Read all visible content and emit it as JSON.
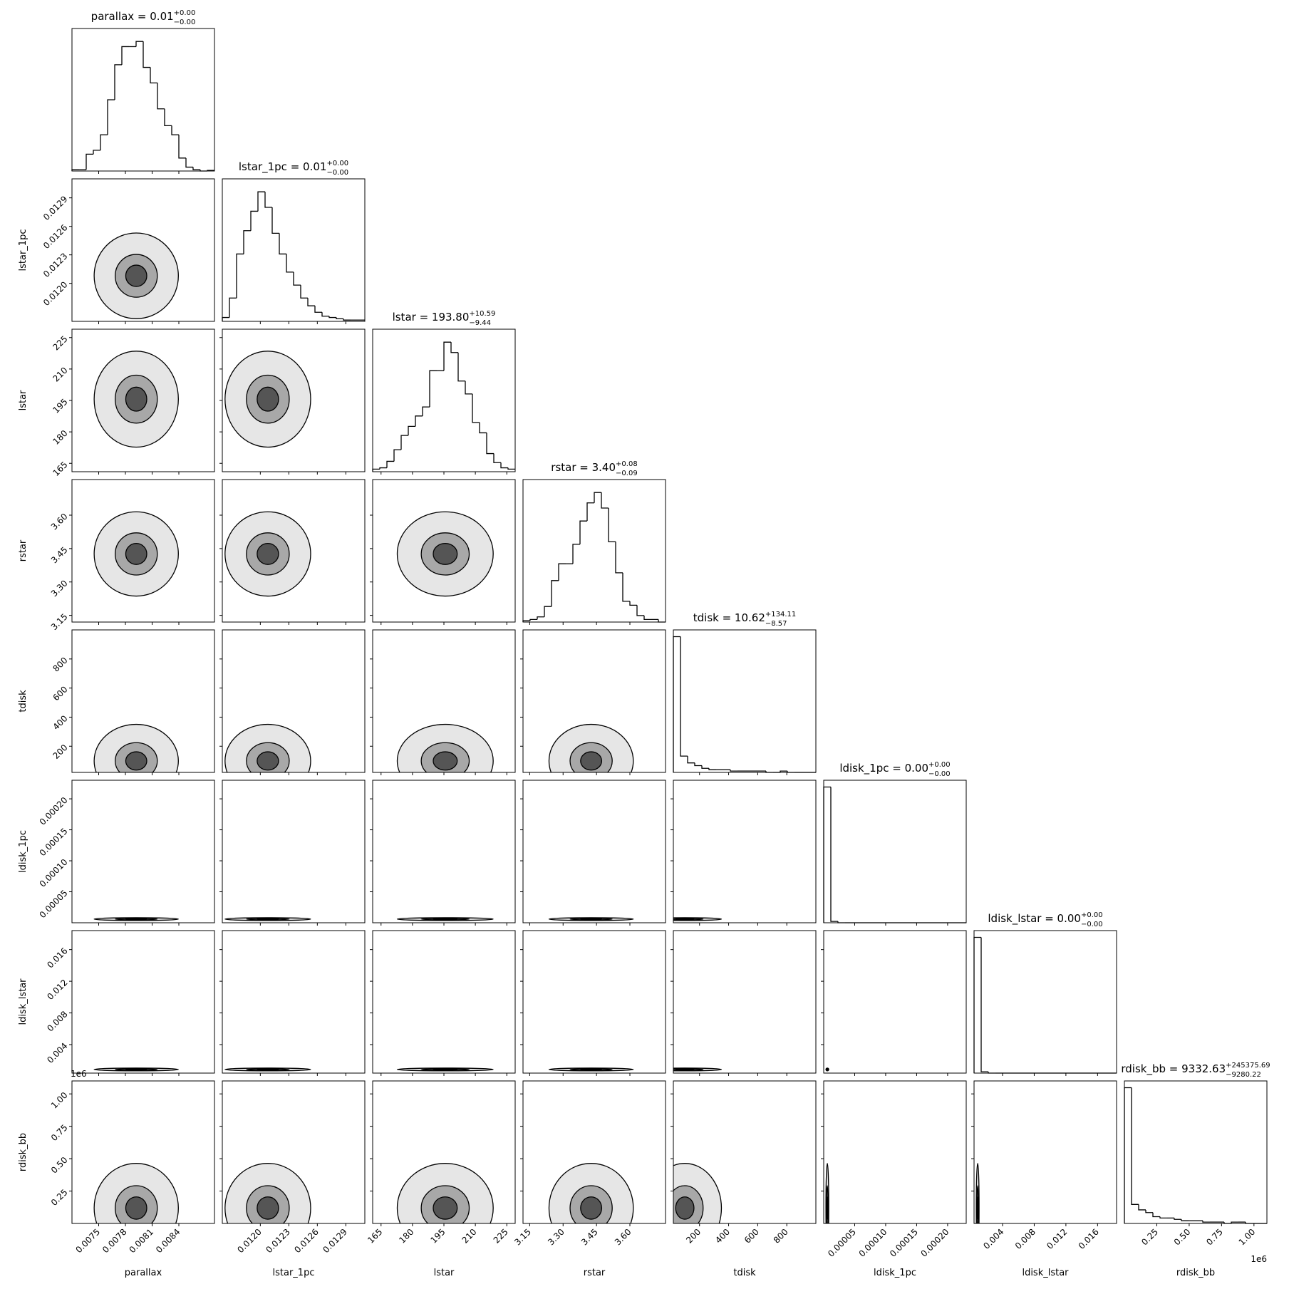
{
  "chart_data": {
    "type": "corner",
    "color": "#000000",
    "parameters": [
      {
        "name": "parallax",
        "title": "parallax = 0.01",
        "title_upper": "+0.00",
        "title_lower": "−0.00",
        "xlim": [
          0.0072,
          0.0088
        ],
        "xticks": [
          0.0075,
          0.0078,
          0.0081,
          0.0084
        ],
        "bins": [
          0.0072,
          0.00728,
          0.00736,
          0.00744,
          0.00752,
          0.0076,
          0.00768,
          0.00776,
          0.00784,
          0.00792,
          0.008,
          0.00808,
          0.00816,
          0.00824,
          0.00832,
          0.0084,
          0.00848,
          0.00856,
          0.00864,
          0.00872,
          0.0088
        ],
        "counts": [
          1,
          1,
          13,
          16,
          28,
          55,
          82,
          96,
          96,
          100,
          80,
          68,
          48,
          35,
          28,
          10,
          3,
          1,
          0,
          0.5
        ],
        "hist_ylim": [
          0,
          110
        ]
      },
      {
        "name": "lstar_1pc",
        "title": "lstar_1pc = 0.01",
        "title_upper": "+0.00",
        "title_lower": "−0.00",
        "xlim": [
          0.0116,
          0.0131
        ],
        "xticks": [
          {
            "value": 0.012,
            "label": "0.0120"
          },
          0.0123,
          0.0126,
          0.0129
        ],
        "bins": [
          0.0116,
          0.011675,
          0.01175,
          0.011825,
          0.0119,
          0.011975,
          0.01205,
          0.012125,
          0.0122,
          0.012275,
          0.01235,
          0.012425,
          0.0125,
          0.012575,
          0.01265,
          0.012725,
          0.0128,
          0.012875,
          0.01295,
          0.013025,
          0.0131
        ],
        "counts": [
          3,
          18,
          52,
          70,
          85,
          100,
          88,
          68,
          52,
          38,
          28,
          18,
          12,
          7,
          4,
          3,
          2,
          1,
          1,
          1
        ],
        "hist_ylim": [
          0,
          110
        ]
      },
      {
        "name": "lstar",
        "title": "lstar = 193.80",
        "title_upper": "+10.59",
        "title_lower": "−9.44",
        "xlim": [
          161,
          229
        ],
        "xticks": [
          165,
          180,
          195,
          210,
          225
        ],
        "bins": [
          161,
          164.4,
          167.8,
          171.2,
          174.6,
          178,
          181.4,
          184.8,
          188.2,
          191.6,
          195,
          198.4,
          201.8,
          205.2,
          208.6,
          212,
          215.4,
          218.8,
          222.2,
          225.6,
          229
        ],
        "counts": [
          2,
          3,
          8,
          17,
          28,
          35,
          43,
          50,
          78,
          78,
          100,
          92,
          70,
          60,
          38,
          30,
          14,
          7,
          3,
          2
        ],
        "hist_ylim": [
          0,
          110
        ]
      },
      {
        "name": "rstar",
        "title": "rstar = 3.40",
        "title_upper": "+0.08",
        "title_lower": "−0.09",
        "xlim": [
          3.12,
          3.76
        ],
        "xticks": [
          3.15,
          {
            "value": 3.3,
            "label": "3.30"
          },
          3.45,
          {
            "value": 3.6,
            "label": "3.60"
          }
        ],
        "bins": [
          3.12,
          3.152,
          3.184,
          3.216,
          3.248,
          3.28,
          3.312,
          3.344,
          3.376,
          3.408,
          3.44,
          3.472,
          3.504,
          3.536,
          3.568,
          3.6,
          3.632,
          3.664,
          3.696,
          3.728,
          3.76
        ],
        "counts": [
          1,
          2,
          4,
          12,
          32,
          45,
          45,
          60,
          78,
          92,
          100,
          88,
          62,
          38,
          16,
          13,
          5,
          2,
          2,
          0
        ],
        "hist_ylim": [
          0,
          110
        ]
      },
      {
        "name": "tdisk",
        "title": "tdisk = 10.62",
        "title_upper": "+134.11",
        "title_lower": "−8.57",
        "xlim": [
          20,
          1000
        ],
        "xticks": [
          200,
          400,
          600,
          800
        ],
        "bins": [
          20,
          69,
          118,
          167,
          216,
          265,
          314,
          363,
          412,
          461,
          510,
          559,
          608,
          657,
          706,
          755,
          804,
          853,
          902,
          951,
          1000
        ],
        "counts": [
          100,
          12,
          7,
          5,
          3,
          2,
          2,
          2,
          1,
          1,
          1,
          1,
          1,
          0,
          0,
          1,
          0,
          0,
          0,
          0
        ],
        "hist_ylim": [
          0,
          105
        ]
      },
      {
        "name": "ldisk_1pc",
        "title": "ldisk_1pc = 0.00",
        "title_upper": "+0.00",
        "title_lower": "−0.00",
        "xlim": [
          0,
          0.00023
        ],
        "xticks": [
          5e-05,
          {
            "value": 0.0001,
            "label": "0.00010"
          },
          0.00015,
          {
            "value": 0.0002,
            "label": "0.00020"
          }
        ],
        "bins": [
          0,
          1.15e-05,
          2.3e-05,
          3.45e-05,
          4.6e-05,
          5.75e-05,
          6.9e-05,
          8.05e-05,
          9.2e-05,
          0.0001035,
          0.000115,
          0.0001265,
          0.000138,
          0.0001495,
          0.000161,
          0.0001725,
          0.000184,
          0.0001955,
          0.000207,
          0.0002185,
          0.00023
        ],
        "counts": [
          100,
          1,
          0,
          0,
          0,
          0,
          0,
          0,
          0,
          0,
          0,
          0,
          0,
          0,
          0,
          0,
          0,
          0,
          0,
          0
        ],
        "hist_ylim": [
          0,
          105
        ]
      },
      {
        "name": "ldisk_lstar",
        "title": "ldisk_lstar = 0.00",
        "title_upper": "+0.00",
        "title_lower": "−0.00",
        "xlim": [
          0.0004,
          0.0184
        ],
        "xticks": [
          0.004,
          0.008,
          0.012,
          0.016
        ],
        "bins": [
          0.0004,
          0.0013,
          0.0022,
          0.0031,
          0.004,
          0.0049,
          0.0058,
          0.0067,
          0.0076,
          0.0085,
          0.0094,
          0.0103,
          0.0112,
          0.0121,
          0.013,
          0.0139,
          0.0148,
          0.0157,
          0.0166,
          0.0175,
          0.0184
        ],
        "counts": [
          100,
          1,
          0,
          0,
          0,
          0,
          0,
          0,
          0,
          0,
          0,
          0,
          0,
          0,
          0,
          0,
          0,
          0,
          0,
          0
        ],
        "hist_ylim": [
          0,
          105
        ]
      },
      {
        "name": "rdisk_bb",
        "title": "rdisk_bb = 9332.63",
        "title_upper": "+245375.69",
        "title_lower": "−9280.22",
        "offset_text": "1e6",
        "xlim": [
          0,
          1.1
        ],
        "xticks": [
          0.25,
          {
            "value": 0.5,
            "label": "0.50"
          },
          0.75,
          {
            "value": 1,
            "label": "1.00"
          }
        ],
        "bins": [
          0,
          0.055,
          0.11,
          0.165,
          0.22,
          0.275,
          0.33,
          0.385,
          0.44,
          0.495,
          0.55,
          0.605,
          0.66,
          0.715,
          0.77,
          0.825,
          0.88,
          0.935,
          0.99,
          1.045,
          1.1
        ],
        "counts": [
          100,
          14,
          10,
          8,
          5,
          4,
          4,
          3,
          2,
          2,
          2,
          1,
          1,
          1,
          0,
          1,
          1,
          0,
          0,
          0
        ],
        "hist_ylim": [
          0,
          105
        ]
      }
    ]
  }
}
